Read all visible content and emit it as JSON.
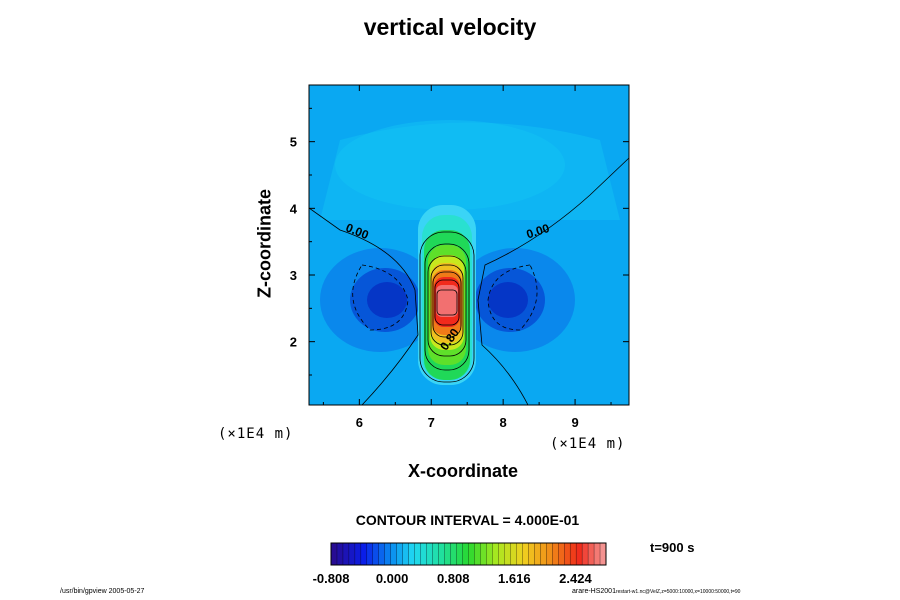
{
  "chart_data": {
    "type": "heatmap",
    "title": "vertical velocity",
    "xlabel": "X-coordinate",
    "ylabel": "Z-coordinate",
    "x_unit_label": "(×1E4 m)",
    "xlim": [
      5.3,
      9.75
    ],
    "ylim": [
      1.05,
      5.85
    ],
    "x_ticks": [
      "6",
      "7",
      "8",
      "9"
    ],
    "x_tick_values": [
      6,
      7,
      8,
      9
    ],
    "y_ticks": [
      "2",
      "3",
      "4",
      "5"
    ],
    "y_tick_values": [
      2,
      3,
      4,
      5
    ],
    "contour_interval_text": "CONTOUR INTERVAL = 4.000E-01",
    "contour_labels": [
      {
        "text": "0.00",
        "x": 5.95,
        "y": 3.6
      },
      {
        "text": "0.00",
        "x": 8.5,
        "y": 3.6
      },
      {
        "text": "0.80",
        "x": 7.3,
        "y": 2.0
      }
    ],
    "features": [
      {
        "kind": "updraft_max",
        "x": 7.2,
        "z": 2.6,
        "value": 2.5
      },
      {
        "kind": "downdraft_min",
        "x": 6.4,
        "z": 2.6,
        "value": -0.7
      },
      {
        "kind": "downdraft_min",
        "x": 8.0,
        "z": 2.6,
        "value": -0.7
      }
    ],
    "colorbar": {
      "range": [
        -0.808,
        2.828
      ],
      "tick_labels": [
        "-0.808",
        "0.000",
        "0.808",
        "1.616",
        "2.424"
      ],
      "tick_values": [
        -0.808,
        0.0,
        0.808,
        1.616,
        2.424
      ]
    },
    "time_label": "t=900 s",
    "grid": false
  },
  "footer": {
    "left": "/usr/bin/gpview 2005-05-27",
    "right_main": "arare-HS2001",
    "right_sub": "restart-w1.nc@VelZ,z=5000:10000,x=10000:50000,t=90"
  }
}
